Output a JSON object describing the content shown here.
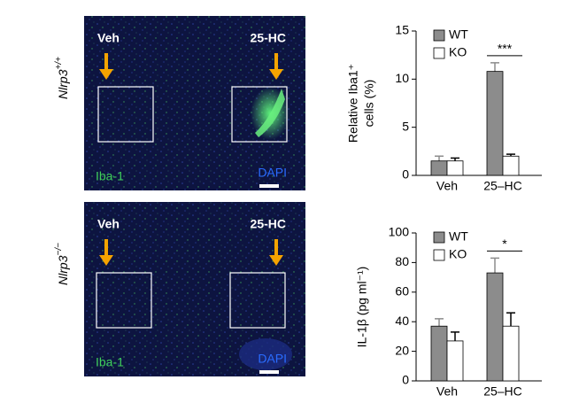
{
  "images": [
    {
      "row_label": "Nlrp3",
      "row_label_sup": "+/+",
      "left_label": "Veh",
      "right_label": "25-HC",
      "stain_green": "Iba-1",
      "stain_blue": "DAPI"
    },
    {
      "row_label": "Nlrp3",
      "row_label_sup": "−/−",
      "left_label": "Veh",
      "right_label": "25-HC",
      "stain_green": "Iba-1",
      "stain_blue": "DAPI"
    }
  ],
  "chart_data": [
    {
      "type": "bar",
      "ylabel": [
        "Relative Iba1⁺",
        "cells (%)"
      ],
      "categories": [
        "Veh",
        "25–HC"
      ],
      "series": [
        {
          "name": "WT",
          "color": "#8c8c8c",
          "values": [
            1.5,
            10.8
          ],
          "errors": [
            0.5,
            0.9
          ]
        },
        {
          "name": "KO",
          "color": "#ffffff",
          "values": [
            1.5,
            2.0
          ],
          "errors": [
            0.3,
            0.2
          ]
        }
      ],
      "ylim": [
        0,
        15
      ],
      "yticks": [
        0,
        5,
        10,
        15
      ],
      "annotation": "***"
    },
    {
      "type": "bar",
      "ylabel": [
        "IL-1β (pg ml⁻¹)"
      ],
      "categories": [
        "Veh",
        "25–HC"
      ],
      "series": [
        {
          "name": "WT",
          "color": "#8c8c8c",
          "values": [
            37,
            73
          ],
          "errors": [
            5,
            10
          ]
        },
        {
          "name": "KO",
          "color": "#ffffff",
          "values": [
            27,
            37
          ],
          "errors": [
            6,
            9
          ]
        }
      ],
      "ylim": [
        0,
        100
      ],
      "yticks": [
        0,
        20,
        40,
        60,
        80,
        100
      ],
      "annotation": "*"
    }
  ]
}
